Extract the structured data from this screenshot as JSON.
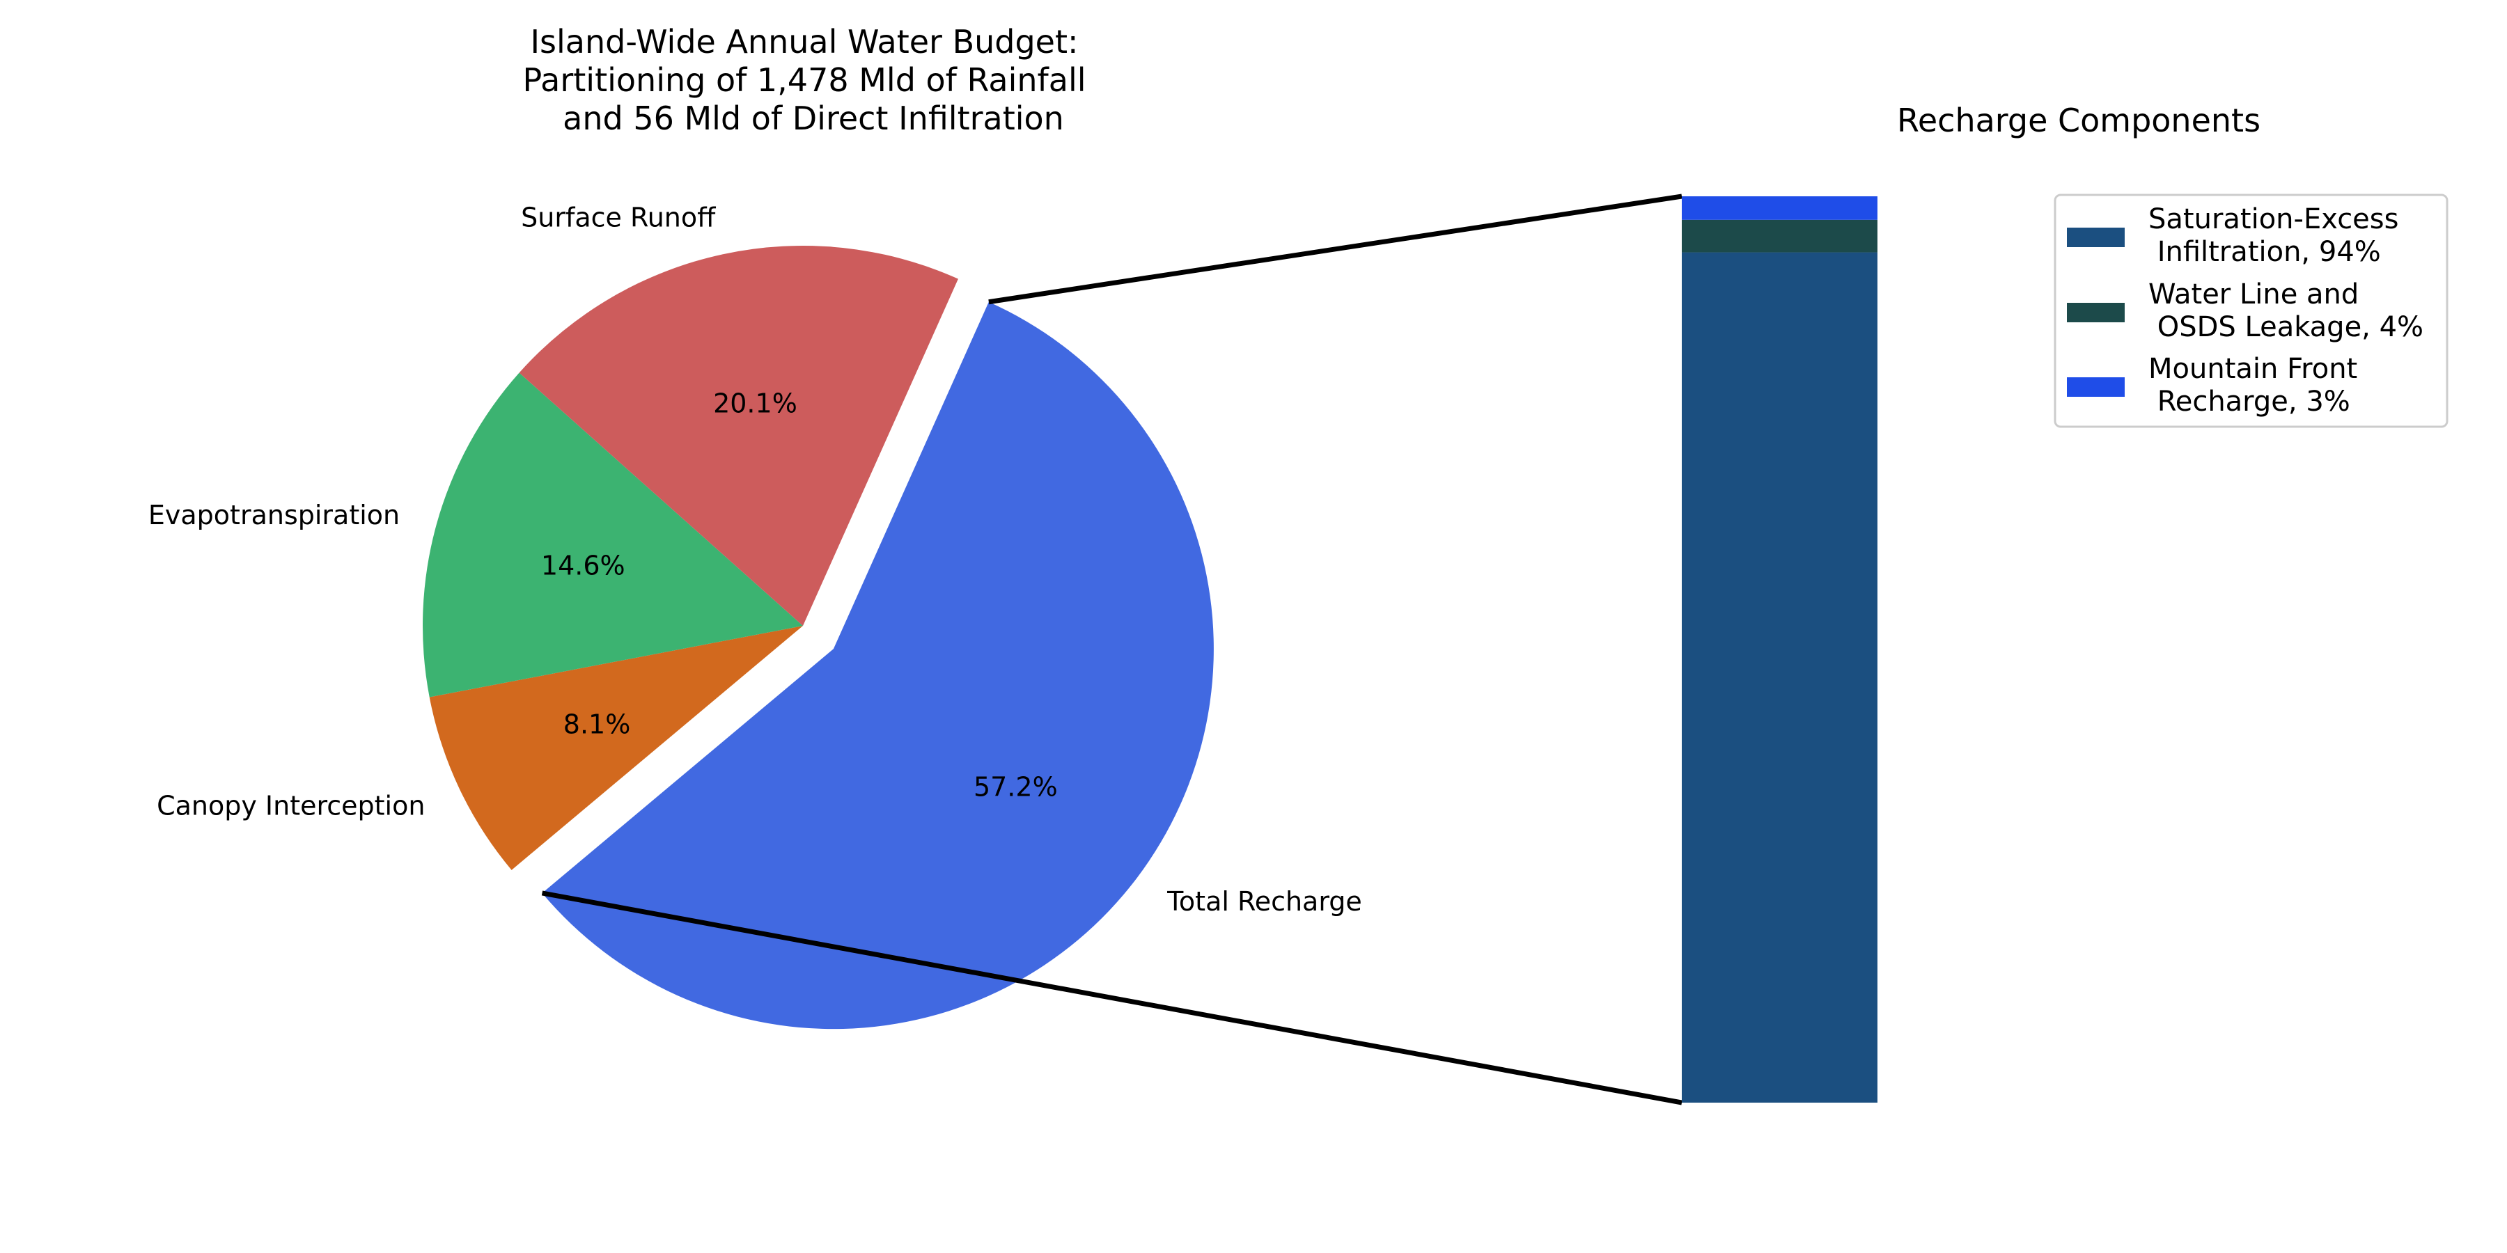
{
  "chart_data": [
    {
      "type": "pie",
      "title_lines": [
        "Island-Wide Annual Water Budget:",
        "Partitioning of 1,478 Mld of Rainfall",
        "and 56 Mld of Direct Infiltration"
      ],
      "slices": [
        {
          "label": "Total Recharge",
          "pct_label": "57.2%",
          "value": 57.2,
          "color": "#4169e1",
          "exploded": true
        },
        {
          "label": "Canopy Interception",
          "pct_label": "8.1%",
          "value": 8.1,
          "color": "#d2691e",
          "exploded": false
        },
        {
          "label": "Evapotranspiration",
          "pct_label": "14.6%",
          "value": 14.6,
          "color": "#3cb371",
          "exploded": false
        },
        {
          "label": "Surface Runoff",
          "pct_label": "20.1%",
          "value": 20.1,
          "color": "#cd5c5c",
          "exploded": false
        }
      ]
    },
    {
      "type": "bar",
      "stacked": true,
      "title": "Recharge Components",
      "series": [
        {
          "name": "Saturation-Excess\n Infiltration, 94%",
          "value": 0.94,
          "color": "#1b4f80"
        },
        {
          "name": "Water Line and\n OSDS Leakage, 4%",
          "value": 0.036,
          "color": "#1c4a4a"
        },
        {
          "name": "Mountain Front\n Recharge, 3%",
          "value": 0.026,
          "color": "#1f4de8"
        }
      ],
      "legend": "top-right"
    }
  ],
  "connector_color": "#000000"
}
